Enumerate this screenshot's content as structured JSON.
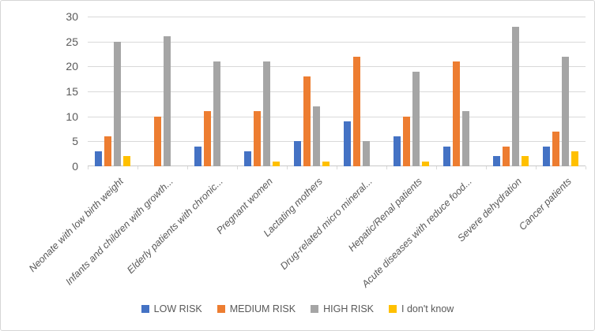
{
  "chart_data": {
    "type": "bar",
    "title": "",
    "xlabel": "",
    "ylabel": "",
    "categories": [
      "Neonate with low birth weight",
      "Infants and children with growth...",
      "Elderly patients with chronic...",
      "Pregnant women",
      "Lactating mothers",
      "Drug-related micro mineral...",
      "Hepatic/Renal patients",
      "Acute diseases with reduce food...",
      "Severe dehydration",
      "Cancer patients"
    ],
    "series": [
      {
        "name": "LOW RISK",
        "color": "#4472C4",
        "values": [
          3,
          0,
          4,
          3,
          5,
          9,
          6,
          4,
          2,
          4
        ]
      },
      {
        "name": "MEDIUM RISK",
        "color": "#ED7D31",
        "values": [
          6,
          10,
          11,
          11,
          18,
          22,
          10,
          21,
          4,
          7
        ]
      },
      {
        "name": "HIGH RISK",
        "color": "#A5A5A5",
        "values": [
          25,
          26,
          21,
          21,
          12,
          5,
          19,
          11,
          28,
          22
        ]
      },
      {
        "name": "I don't know",
        "color": "#FFC000",
        "values": [
          2,
          0,
          0,
          1,
          1,
          0,
          1,
          0,
          2,
          3
        ]
      }
    ],
    "ylim": [
      0,
      30
    ],
    "yticks": [
      0,
      5,
      10,
      15,
      20,
      25,
      30
    ],
    "grid": true,
    "legend_position": "bottom"
  }
}
